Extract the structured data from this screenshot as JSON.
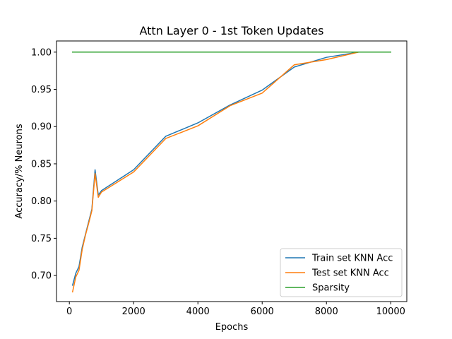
{
  "chart_data": {
    "type": "line",
    "title": "Attn Layer 0 - 1st Token Updates",
    "xlabel": "Epochs",
    "ylabel": "Accuracy/% Neurons",
    "xlim": [
      -400,
      10500
    ],
    "ylim": [
      0.665,
      1.015
    ],
    "xticks": [
      0,
      2000,
      4000,
      6000,
      8000,
      10000
    ],
    "yticks": [
      0.7,
      0.75,
      0.8,
      0.85,
      0.9,
      0.95,
      1.0
    ],
    "xtick_labels": [
      "0",
      "2000",
      "4000",
      "6000",
      "8000",
      "10000"
    ],
    "ytick_labels": [
      "0.70",
      "0.75",
      "0.80",
      "0.85",
      "0.90",
      "0.95",
      "1.00"
    ],
    "grid": false,
    "legend_position": "lower-right",
    "series": [
      {
        "name": "Train set KNN Acc",
        "color": "#1f77b4",
        "x": [
          100,
          200,
          300,
          400,
          500,
          600,
          700,
          800,
          900,
          1000,
          2000,
          3000,
          4000,
          5000,
          6000,
          7000,
          8000,
          9000,
          10000
        ],
        "y": [
          0.687,
          0.703,
          0.712,
          0.738,
          0.755,
          0.772,
          0.789,
          0.842,
          0.808,
          0.814,
          0.842,
          0.887,
          0.905,
          0.929,
          0.949,
          0.98,
          0.993,
          1.0,
          1.0
        ]
      },
      {
        "name": "Test set KNN Acc",
        "color": "#ff7f0e",
        "x": [
          100,
          200,
          300,
          400,
          500,
          600,
          700,
          800,
          900,
          1000,
          2000,
          3000,
          4000,
          5000,
          6000,
          7000,
          8000,
          9000,
          10000
        ],
        "y": [
          0.678,
          0.698,
          0.707,
          0.735,
          0.754,
          0.77,
          0.787,
          0.837,
          0.805,
          0.812,
          0.839,
          0.884,
          0.901,
          0.928,
          0.945,
          0.983,
          0.99,
          1.0,
          1.0
        ]
      },
      {
        "name": "Sparsity",
        "color": "#2ca02c",
        "x": [
          100,
          10000
        ],
        "y": [
          1.0,
          1.0
        ]
      }
    ]
  }
}
